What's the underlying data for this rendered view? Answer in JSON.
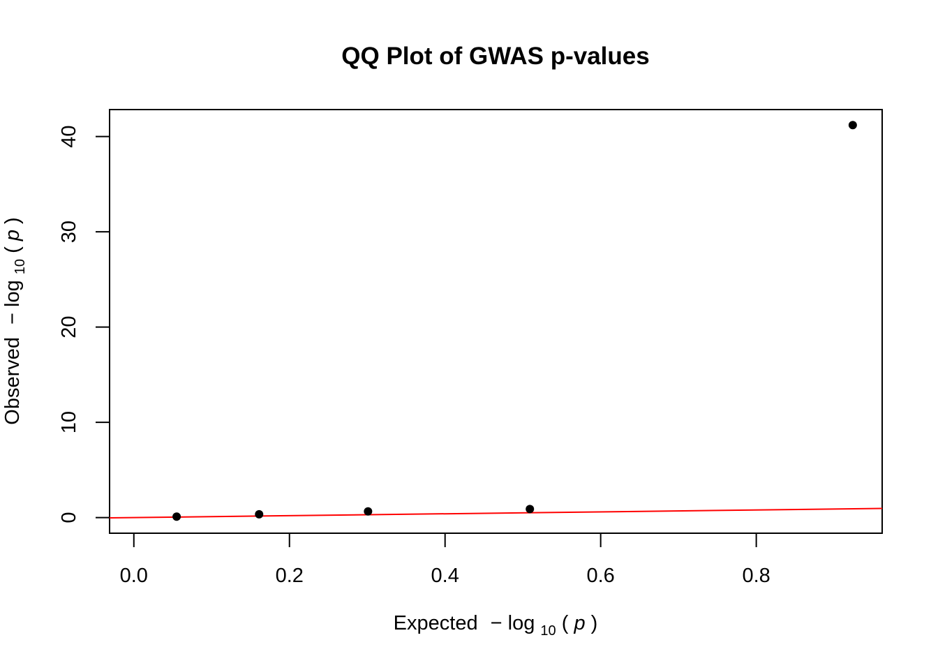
{
  "chart_data": {
    "type": "scatter",
    "title": "QQ Plot of GWAS p-values",
    "xlabel": {
      "prefix": "Expected",
      "minus": "−",
      "log": "log",
      "base": "10",
      "open": "(",
      "var": "p",
      "close": ")"
    },
    "ylabel": {
      "prefix": "Observed",
      "minus": "−",
      "log": "log",
      "base": "10",
      "open": "(",
      "var": "p",
      "close": ")"
    },
    "xlim": [
      -0.0312,
      0.9618
    ],
    "ylim": [
      -1.64,
      42.83
    ],
    "x_ticks": [
      0.0,
      0.2,
      0.4,
      0.6,
      0.8
    ],
    "x_tick_labels": [
      "0.0",
      "0.2",
      "0.4",
      "0.6",
      "0.8"
    ],
    "y_ticks": [
      0,
      10,
      20,
      30,
      40
    ],
    "y_tick_labels": [
      "0",
      "10",
      "20",
      "30",
      "40"
    ],
    "grid": false,
    "series": [
      {
        "x": [
          0.055,
          0.161,
          0.301,
          0.509,
          0.924
        ],
        "y": [
          0.1,
          0.35,
          0.65,
          0.9,
          41.2
        ],
        "color": "#000000",
        "marker": "filled-circle"
      }
    ],
    "reference_line": {
      "intercept": 0,
      "slope": 1,
      "color": "#ff0000"
    }
  }
}
